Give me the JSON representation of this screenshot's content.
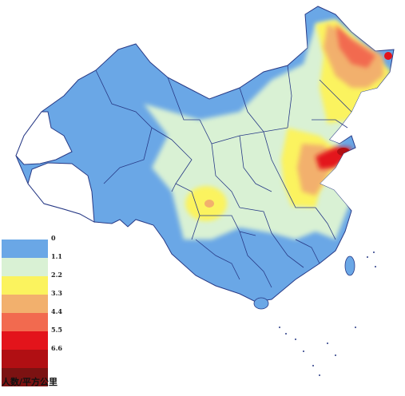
{
  "legend": {
    "unit": "人数/平方公里",
    "items": [
      {
        "label": "0",
        "color": "#6aa7e6"
      },
      {
        "label": "1.1",
        "color": "#d9f1d4"
      },
      {
        "label": "2.2",
        "color": "#fbf35e"
      },
      {
        "label": "3.3",
        "color": "#f2b06d"
      },
      {
        "label": "4.4",
        "color": "#f26a4f"
      },
      {
        "label": "5.5",
        "color": "#e3141b"
      },
      {
        "label": "6.6",
        "color": "#b10f13"
      },
      {
        "label": "",
        "color": "#7c1212"
      }
    ]
  },
  "colors": {
    "blue": "#6aa7e6",
    "pale_green": "#d9f1d4",
    "yellow": "#fbf35e",
    "orange": "#f2b06d",
    "red_orange": "#f26a4f",
    "red": "#e3141b",
    "dark_red": "#b10f13",
    "white_region": "#ffffff",
    "border": "#283a86"
  }
}
